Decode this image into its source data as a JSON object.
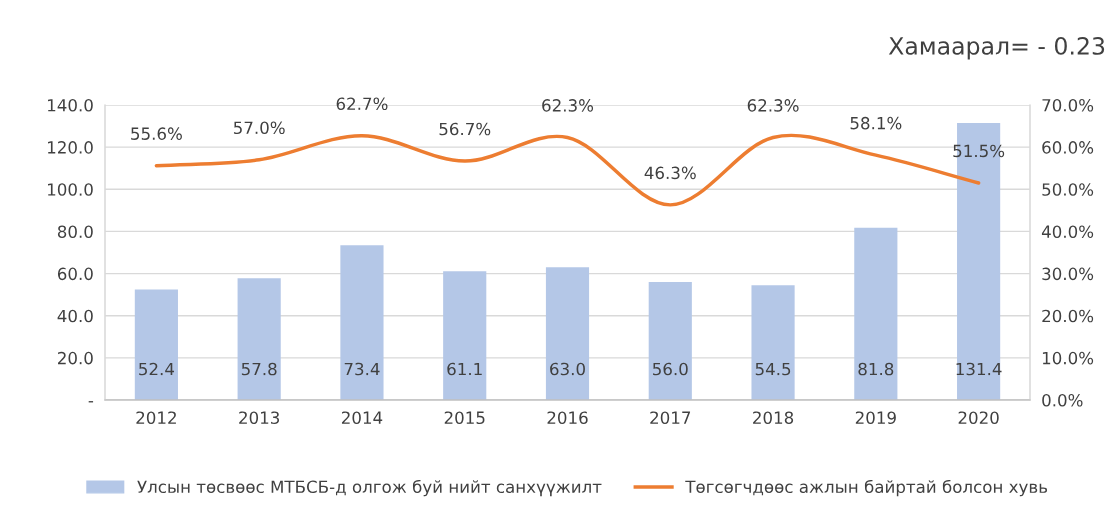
{
  "chart_data": {
    "type": "bar",
    "categories": [
      "2012",
      "2013",
      "2014",
      "2015",
      "2016",
      "2017",
      "2018",
      "2019",
      "2020"
    ],
    "series": [
      {
        "name": "Улсын төсвөөс МТБСБ-д олгож буй нийт санхүүжилт",
        "color": "#b4c7e7",
        "values": [
          52.4,
          57.8,
          73.4,
          61.1,
          63.0,
          56.0,
          54.5,
          81.8,
          131.4
        ],
        "value_labels": [
          "52.4",
          "57.8",
          "73.4",
          "61.1",
          "63.0",
          "56.0",
          "54.5",
          "81.8",
          "131.4"
        ]
      },
      {
        "name": "Төгсөгчдөөс ажлын байртай болсон хувь",
        "type": "line",
        "axis": "y2",
        "color": "#ed7d31",
        "values": [
          55.6,
          57.0,
          62.7,
          56.7,
          62.3,
          46.3,
          62.3,
          58.1,
          51.5
        ],
        "value_labels": [
          "55.6%",
          "57.0%",
          "62.7%",
          "56.7%",
          "62.3%",
          "46.3%",
          "62.3%",
          "58.1%",
          "51.5%"
        ]
      }
    ],
    "ylim": [
      0,
      140
    ],
    "yticks": [
      {
        "value": 0,
        "label": "-"
      },
      {
        "value": 20,
        "label": "20.0"
      },
      {
        "value": 40,
        "label": "40.0"
      },
      {
        "value": 60,
        "label": "60.0"
      },
      {
        "value": 80,
        "label": "80.0"
      },
      {
        "value": 100,
        "label": "100.0"
      },
      {
        "value": 120,
        "label": "120.0"
      },
      {
        "value": 140,
        "label": "140.0"
      }
    ],
    "y2lim": [
      0,
      70
    ],
    "y2ticks": [
      {
        "value": 0,
        "label": "0.0%"
      },
      {
        "value": 10,
        "label": "10.0%"
      },
      {
        "value": 20,
        "label": "20.0%"
      },
      {
        "value": 30,
        "label": "30.0%"
      },
      {
        "value": 40,
        "label": "40.0%"
      },
      {
        "value": 50,
        "label": "50.0%"
      },
      {
        "value": 60,
        "label": "60.0%"
      },
      {
        "value": 70,
        "label": "70.0%"
      }
    ],
    "annotations": [
      "Хамаарал= - 0.23"
    ],
    "grid": "y",
    "legend": "bottom",
    "marker": "none",
    "line_style": "solid"
  }
}
